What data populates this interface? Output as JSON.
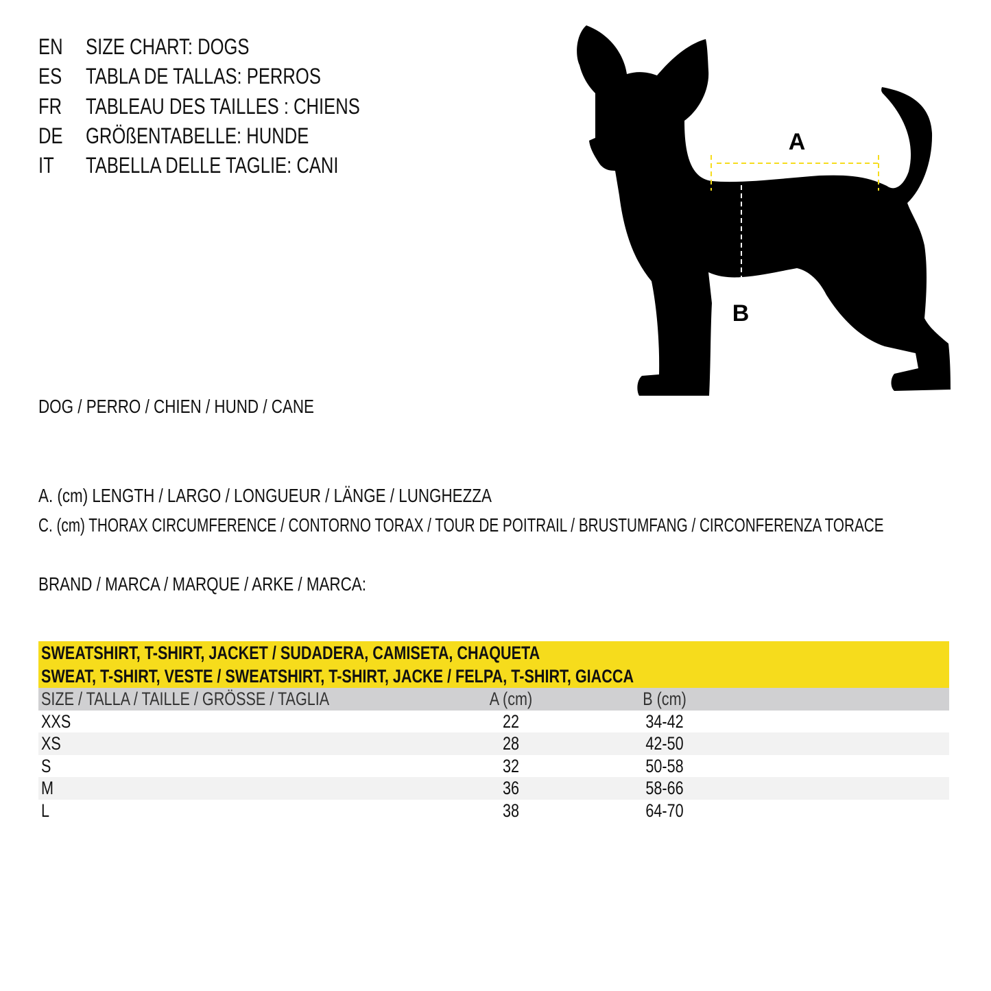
{
  "titles": [
    {
      "lang": "EN",
      "text": "SIZE CHART: DOGS"
    },
    {
      "lang": "ES",
      "text": "TABLA DE TALLAS: PERROS"
    },
    {
      "lang": "FR",
      "text": "TABLEAU DES TAILLES : CHIENS"
    },
    {
      "lang": "DE",
      "text": "GRÖßENTABELLE: HUNDE"
    },
    {
      "lang": "IT",
      "text": "TABELLA DELLE TAGLIE: CANI"
    }
  ],
  "animal_label": "DOG / PERRO / CHIEN / HUND / CANE",
  "measurements": {
    "a": "A. (cm) LENGTH / LARGO / LONGUEUR / LÄNGE / LUNGHEZZA",
    "c": "C. (cm) THORAX CIRCUMFERENCE / CONTORNO TORAX / TOUR DE POITRAIL / BRUSTUMFANG / CIRCONFERENZA TORACE"
  },
  "brand_label": "BRAND / MARCA / MARQUE / ARKE / MARCA:",
  "diagram": {
    "label_a": "A",
    "label_b": "B",
    "colors": {
      "silhouette": "#000000",
      "line_a": "#f6dc1c",
      "line_b": "#ffffff"
    }
  },
  "table": {
    "title_lines": [
      "SWEATSHIRT, T-SHIRT, JACKET / SUDADERA, CAMISETA, CHAQUETA",
      "SWEAT, T-SHIRT, VESTE / SWEATSHIRT, T-SHIRT, JACKE / FELPA, T-SHIRT, GIACCA"
    ],
    "headers": [
      "SIZE / TALLA / TAILLE / GRÖSSE / TAGLIA",
      "A (cm)",
      "B (cm)"
    ],
    "rows": [
      [
        "XXS",
        "22",
        "34-42"
      ],
      [
        "XS",
        "28",
        "42-50"
      ],
      [
        "S",
        "32",
        "50-58"
      ],
      [
        "M",
        "36",
        "58-66"
      ],
      [
        "L",
        "38",
        "64-70"
      ]
    ],
    "colors": {
      "title_bg": "#f6dc1c",
      "header_bg": "#d0d0d2",
      "alt_row_bg": "#f2f2f2"
    }
  }
}
